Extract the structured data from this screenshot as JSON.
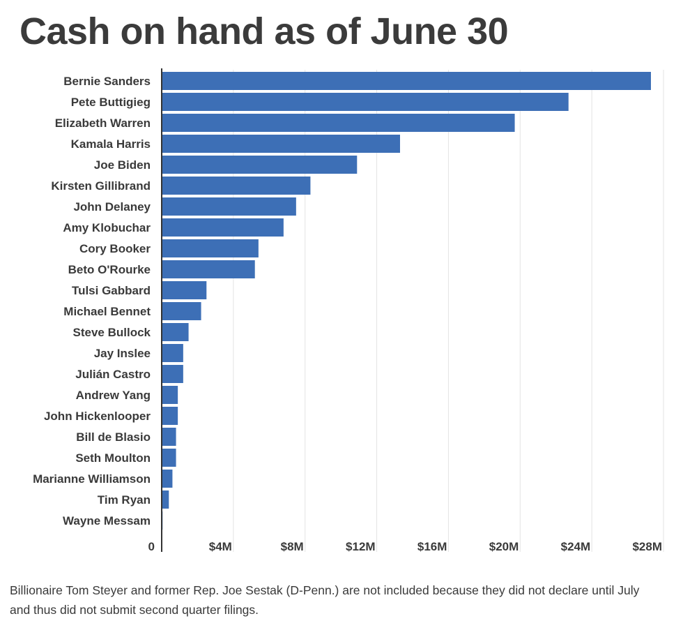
{
  "title": "Cash on hand as of June 30",
  "footnote": "Billionaire Tom Steyer and former Rep. Joe Sestak (D-Penn.) are not included because they did not declare until July and thus did not submit second quarter filings.",
  "colors": {
    "bar": "#3d6fb6",
    "grid": "#e3e3e3",
    "axis": "#333333"
  },
  "chart_data": {
    "type": "bar",
    "orientation": "horizontal",
    "title": "Cash on hand as of June 30",
    "xlabel": "",
    "ylabel": "",
    "unit": "USD",
    "xlim": [
      0,
      28000000
    ],
    "grid": true,
    "ticks": [
      {
        "value": 0,
        "label": "0"
      },
      {
        "value": 4000000,
        "label": "$4M"
      },
      {
        "value": 8000000,
        "label": "$8M"
      },
      {
        "value": 12000000,
        "label": "$12M"
      },
      {
        "value": 16000000,
        "label": "$16M"
      },
      {
        "value": 20000000,
        "label": "$20M"
      },
      {
        "value": 24000000,
        "label": "$24M"
      },
      {
        "value": 28000000,
        "label": "$28M"
      }
    ],
    "categories": [
      "Bernie Sanders",
      "Pete Buttigieg",
      "Elizabeth Warren",
      "Kamala Harris",
      "Joe Biden",
      "Kirsten Gillibrand",
      "John Delaney",
      "Amy Klobuchar",
      "Cory Booker",
      "Beto O'Rourke",
      "Tulsi Gabbard",
      "Michael Bennet",
      "Steve Bullock",
      "Jay Inslee",
      "Julián Castro",
      "Andrew Yang",
      "John Hickenlooper",
      "Bill de Blasio",
      "Seth Moulton",
      "Marianne Williamson",
      "Tim Ryan",
      "Wayne Messam"
    ],
    "values": [
      27300000,
      22700000,
      19700000,
      13300000,
      10900000,
      8300000,
      7500000,
      6800000,
      5400000,
      5200000,
      2500000,
      2200000,
      1500000,
      1200000,
      1200000,
      900000,
      900000,
      800000,
      800000,
      600000,
      400000,
      50000
    ]
  }
}
